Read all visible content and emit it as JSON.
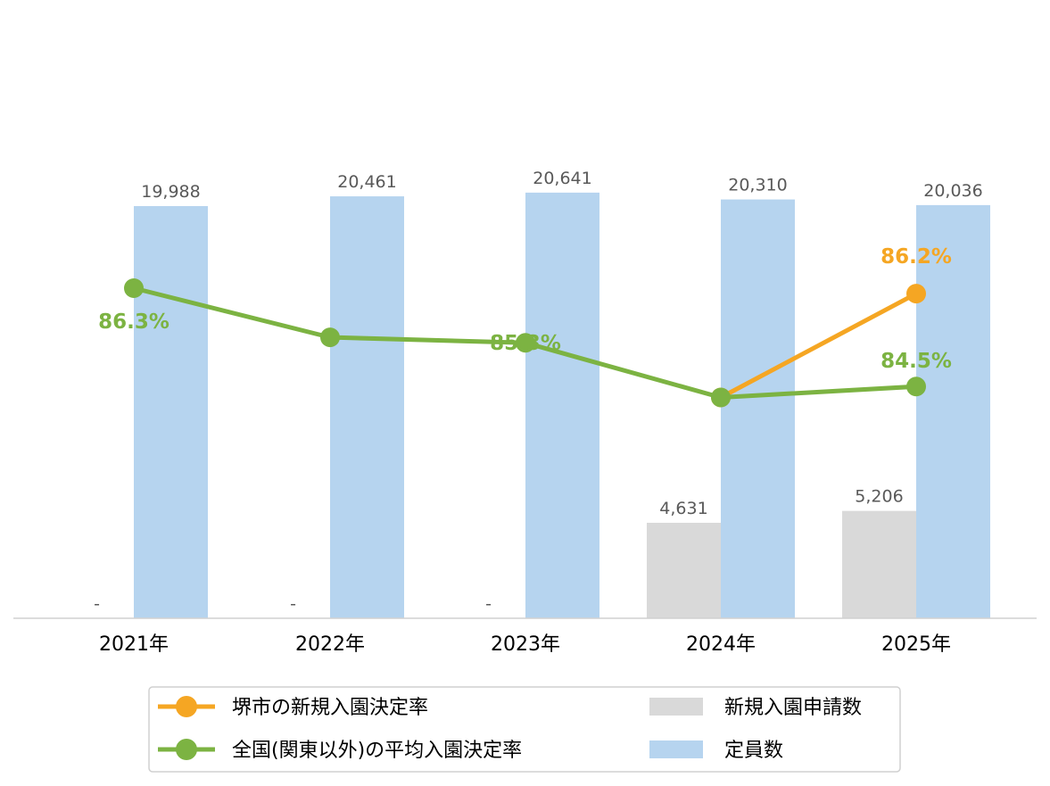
{
  "chart_data": {
    "type": "bar",
    "categories": [
      "2021年",
      "2022年",
      "2023年",
      "2024年",
      "2025年"
    ],
    "bar_series": [
      {
        "name": "新規入園申請数",
        "color": "#d9d9d9",
        "values": [
          null,
          null,
          null,
          4631,
          5206
        ],
        "labels": [
          "-",
          "-",
          "-",
          "4,631",
          "5,206"
        ]
      },
      {
        "name": "定員数",
        "color": "#b6d4ef",
        "values": [
          19988,
          20461,
          20641,
          20310,
          20036
        ],
        "labels": [
          "19,988",
          "20,461",
          "20,641",
          "20,310",
          "20,036"
        ]
      }
    ],
    "line_series": [
      {
        "name": "堺市の新規入園決定率",
        "color": "#f5a623",
        "values": [
          null,
          null,
          null,
          84.3,
          86.2
        ],
        "labels": [
          "",
          "",
          "",
          "",
          "86.2%"
        ]
      },
      {
        "name": "全国(関東以外)の平均入園決定率",
        "color": "#7cb342",
        "values": [
          86.3,
          85.4,
          85.3,
          84.3,
          84.5
        ],
        "labels": [
          "86.3%",
          "",
          "85.3%",
          "",
          "84.5%"
        ]
      }
    ],
    "legend": {
      "placement": "bottom",
      "items": [
        {
          "label": "堺市の新規入園決定率",
          "kind": "line",
          "color": "#f5a623"
        },
        {
          "label": "新規入園申請数",
          "kind": "bar",
          "color": "#d9d9d9"
        },
        {
          "label": "全国(関東以外)の平均入園決定率",
          "kind": "line",
          "color": "#7cb342"
        },
        {
          "label": "定員数",
          "kind": "bar",
          "color": "#b6d4ef"
        }
      ]
    },
    "grid": false,
    "title": "",
    "xlabel": "",
    "ylabel": ""
  }
}
